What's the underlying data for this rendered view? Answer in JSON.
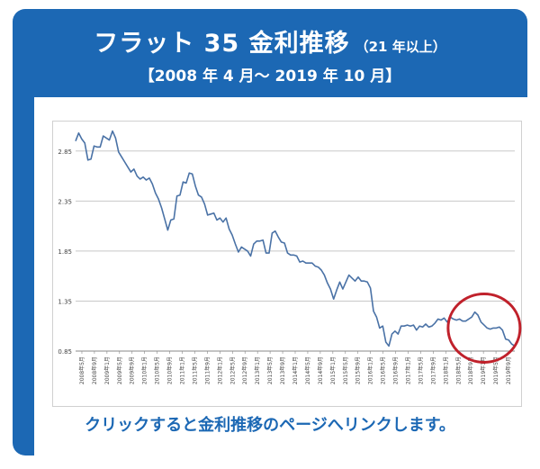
{
  "header": {
    "title": "フラット 35 金利推移",
    "title_suffix": "（21 年以上）",
    "period": "【2008 年 4 月～ 2019 年 10 月】"
  },
  "link": {
    "label": "クリックすると金利推移のページへリンクします。"
  },
  "colors": {
    "brand_blue": "#1c68b4",
    "line": "#4a72a6",
    "highlight_circle": "#c0212b",
    "grid": "#c8c8c8"
  },
  "chart_data": {
    "type": "line",
    "title": "",
    "xlabel": "",
    "ylabel": "",
    "ylim": [
      0.85,
      3.1
    ],
    "y_ticks": [
      "0.85",
      "1.35",
      "1.85",
      "2.35",
      "2.85"
    ],
    "grid": true,
    "x_tick_labels": [
      "2008年5月",
      "2008年9月",
      "2009年1月",
      "2009年5月",
      "2009年9月",
      "2010年1月",
      "2010年5月",
      "2010年9月",
      "2011年1月",
      "2011年5月",
      "2011年9月",
      "2012年1月",
      "2012年5月",
      "2012年9月",
      "2013年1月",
      "2013年5月",
      "2013年9月",
      "2014年1月",
      "2014年5月",
      "2014年9月",
      "2015年1月",
      "2015年5月",
      "2015年9月",
      "2016年1月",
      "2016年5月",
      "2016年9月",
      "2017年1月",
      "2017年5月",
      "2017年9月",
      "2018年1月",
      "2018年5月",
      "2018年9月",
      "2019年1月",
      "2019年5月",
      "2019年9月"
    ],
    "series": [
      {
        "values": [
          2.95,
          3.03,
          2.97,
          2.93,
          2.76,
          2.77,
          2.9,
          2.89,
          2.89,
          3.0,
          2.98,
          2.96,
          3.05,
          2.98,
          2.84,
          2.79,
          2.74,
          2.69,
          2.64,
          2.67,
          2.6,
          2.57,
          2.59,
          2.56,
          2.58,
          2.52,
          2.43,
          2.37,
          2.28,
          2.17,
          2.06,
          2.16,
          2.17,
          2.4,
          2.41,
          2.54,
          2.53,
          2.63,
          2.62,
          2.5,
          2.41,
          2.39,
          2.32,
          2.21,
          2.22,
          2.23,
          2.16,
          2.18,
          2.14,
          2.18,
          2.07,
          2.01,
          1.92,
          1.84,
          1.89,
          1.87,
          1.85,
          1.8,
          1.92,
          1.95,
          1.95,
          1.96,
          1.83,
          1.83,
          2.03,
          2.05,
          1.99,
          1.94,
          1.93,
          1.83,
          1.81,
          1.81,
          1.8,
          1.74,
          1.75,
          1.73,
          1.73,
          1.73,
          1.7,
          1.69,
          1.66,
          1.61,
          1.53,
          1.47,
          1.37,
          1.46,
          1.54,
          1.47,
          1.54,
          1.61,
          1.58,
          1.55,
          1.59,
          1.55,
          1.55,
          1.54,
          1.48,
          1.25,
          1.19,
          1.08,
          1.1,
          0.94,
          0.9,
          1.02,
          1.05,
          1.02,
          1.1,
          1.1,
          1.11,
          1.1,
          1.11,
          1.06,
          1.1,
          1.09,
          1.12,
          1.09,
          1.1,
          1.13,
          1.17,
          1.16,
          1.18,
          1.14,
          1.19,
          1.17,
          1.16,
          1.17,
          1.15,
          1.15,
          1.17,
          1.19,
          1.24,
          1.21,
          1.14,
          1.11,
          1.08,
          1.07,
          1.08,
          1.08,
          1.09,
          1.06,
          0.97,
          0.96,
          0.92,
          0.9
        ]
      }
    ]
  }
}
